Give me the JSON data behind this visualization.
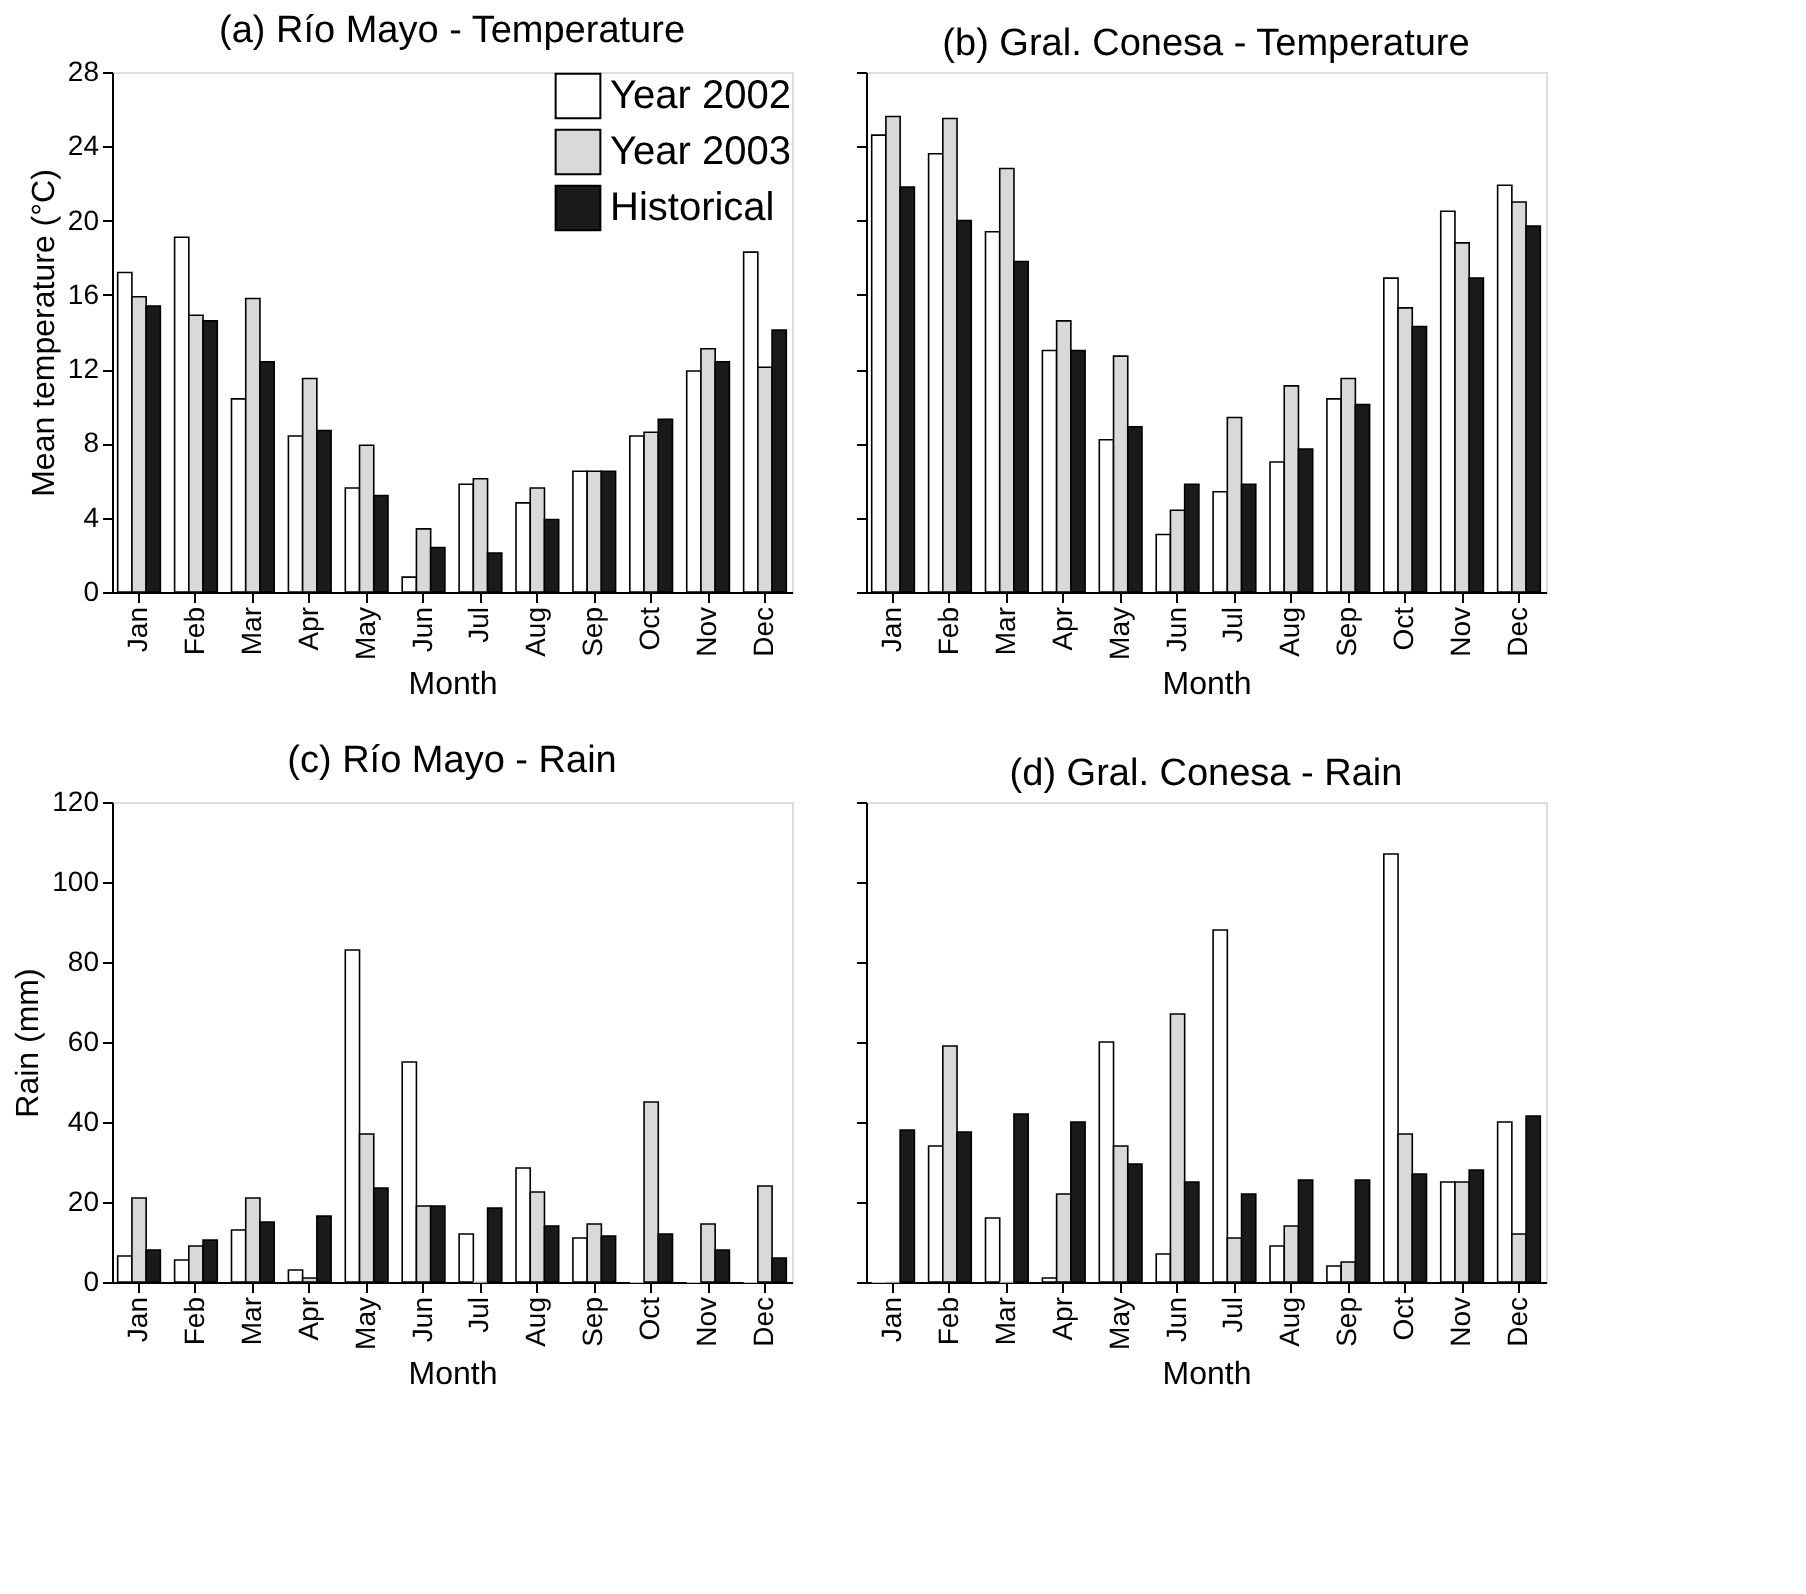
{
  "chart_data": [
    {
      "type": "bar",
      "title": "(a) Río Mayo - Temperature",
      "xlabel": "Month",
      "ylabel": "Mean temperature (°C)",
      "categories": [
        "Jan",
        "Feb",
        "Mar",
        "Apr",
        "May",
        "Jun",
        "Jul",
        "Aug",
        "Sep",
        "Oct",
        "Nov",
        "Dec"
      ],
      "ylim": [
        0,
        28
      ],
      "yticks": [
        0,
        4,
        8,
        12,
        16,
        20,
        24,
        28
      ],
      "grid": false,
      "legend": "top right",
      "series": [
        {
          "name": "Year 2002",
          "color": "#ffffff",
          "values": [
            17.2,
            19.1,
            10.4,
            8.4,
            5.6,
            0.8,
            5.8,
            4.8,
            6.5,
            8.4,
            11.9,
            18.3
          ]
        },
        {
          "name": "Year 2003",
          "color": "#d9d9d9",
          "values": [
            15.9,
            14.9,
            15.8,
            11.5,
            7.9,
            3.4,
            6.1,
            5.6,
            6.5,
            8.6,
            13.1,
            12.1
          ]
        },
        {
          "name": "Historical",
          "color": "#1a1a1a",
          "values": [
            15.4,
            14.6,
            12.4,
            8.7,
            5.2,
            2.4,
            2.1,
            3.9,
            6.5,
            9.3,
            12.4,
            14.1
          ]
        }
      ]
    },
    {
      "type": "bar",
      "title": "(b) Gral. Conesa - Temperature",
      "xlabel": "Month",
      "categories": [
        "Jan",
        "Feb",
        "Mar",
        "Apr",
        "May",
        "Jun",
        "Jul",
        "Aug",
        "Sep",
        "Oct",
        "Nov",
        "Dec"
      ],
      "ylim": [
        0,
        28
      ],
      "yticks": [
        0,
        4,
        8,
        12,
        16,
        20,
        24,
        28
      ],
      "grid": false,
      "tick_labels": "x",
      "series": [
        {
          "color": "#ffffff",
          "values": [
            24.6,
            23.6,
            19.4,
            13.0,
            8.2,
            3.1,
            5.4,
            7.0,
            10.4,
            16.9,
            20.5,
            21.9
          ]
        },
        {
          "color": "#d9d9d9",
          "values": [
            25.6,
            25.5,
            22.8,
            14.6,
            12.7,
            4.4,
            9.4,
            11.1,
            11.5,
            15.3,
            18.8,
            21.0
          ]
        },
        {
          "color": "#1a1a1a",
          "values": [
            21.8,
            20.0,
            17.8,
            13.0,
            8.9,
            5.8,
            5.8,
            7.7,
            10.1,
            14.3,
            16.9,
            19.7
          ]
        }
      ]
    },
    {
      "type": "bar",
      "title": "(c) Río Mayo - Rain",
      "xlabel": "Month",
      "ylabel": "Rain (mm)",
      "categories": [
        "Jan",
        "Feb",
        "Mar",
        "Apr",
        "May",
        "Jun",
        "Jul",
        "Aug",
        "Sep",
        "Oct",
        "Nov",
        "Dec"
      ],
      "ylim": [
        0,
        120
      ],
      "yticks": [
        0,
        20,
        40,
        60,
        80,
        100,
        120
      ],
      "grid": false,
      "series": [
        {
          "color": "#ffffff",
          "values": [
            6.5,
            5.5,
            13,
            3,
            83,
            55,
            12,
            28.5,
            11,
            0,
            0,
            0
          ]
        },
        {
          "color": "#d9d9d9",
          "values": [
            21,
            9,
            21,
            1,
            37,
            19,
            0,
            22.5,
            14.5,
            45,
            14.5,
            24
          ]
        },
        {
          "color": "#1a1a1a",
          "values": [
            8,
            10.5,
            15,
            16.5,
            23.5,
            19,
            18.5,
            14,
            11.5,
            12,
            8,
            6
          ]
        }
      ]
    },
    {
      "type": "bar",
      "title": "(d) Gral. Conesa - Rain",
      "xlabel": "Month",
      "categories": [
        "Jan",
        "Feb",
        "Mar",
        "Apr",
        "May",
        "Jun",
        "Jul",
        "Aug",
        "Sep",
        "Oct",
        "Nov",
        "Dec"
      ],
      "ylim": [
        0,
        120
      ],
      "yticks": [
        0,
        20,
        40,
        60,
        80,
        100,
        120
      ],
      "grid": false,
      "tick_labels": "x",
      "series": [
        {
          "color": "#ffffff",
          "values": [
            0,
            34,
            16,
            1,
            60,
            7,
            88,
            9,
            4,
            107,
            25,
            40
          ]
        },
        {
          "color": "#d9d9d9",
          "values": [
            0,
            59,
            0,
            22,
            34,
            67,
            11,
            14,
            5,
            37,
            25,
            12
          ]
        },
        {
          "color": "#1a1a1a",
          "values": [
            38,
            37.5,
            42,
            40,
            29.5,
            25,
            22,
            25.5,
            25.5,
            27,
            28,
            41.5
          ]
        }
      ]
    }
  ]
}
